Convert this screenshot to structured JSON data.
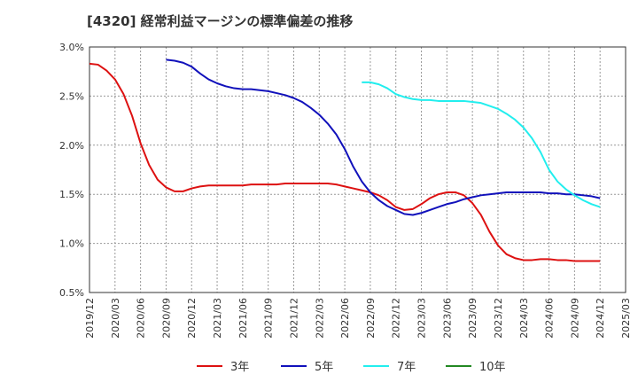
{
  "chart_data": {
    "type": "line",
    "title": "[4320]  経常利益マージンの標準偏差の推移",
    "xlabel": "",
    "ylabel": "",
    "y_tick_labels": [
      "0.5%",
      "1.0%",
      "1.5%",
      "2.0%",
      "2.5%",
      "3.0%"
    ],
    "ylim": [
      0.5,
      3.0
    ],
    "x_tick_labels": [
      "2019/12",
      "2020/03",
      "2020/06",
      "2020/09",
      "2020/12",
      "2021/03",
      "2021/06",
      "2021/09",
      "2021/12",
      "2022/03",
      "2022/06",
      "2022/09",
      "2022/12",
      "2023/03",
      "2023/06",
      "2023/09",
      "2023/12",
      "2024/03",
      "2024/06",
      "2024/09",
      "2024/12",
      "2025/03"
    ],
    "grid": true,
    "legend_position": "bottom",
    "series": [
      {
        "name": "3年",
        "color": "#dd1111",
        "points": [
          [
            "2019/12",
            2.83
          ],
          [
            "2020/01",
            2.82
          ],
          [
            "2020/02",
            2.76
          ],
          [
            "2020/03",
            2.67
          ],
          [
            "2020/04",
            2.52
          ],
          [
            "2020/05",
            2.3
          ],
          [
            "2020/06",
            2.02
          ],
          [
            "2020/07",
            1.8
          ],
          [
            "2020/08",
            1.65
          ],
          [
            "2020/09",
            1.57
          ],
          [
            "2020/10",
            1.53
          ],
          [
            "2020/11",
            1.53
          ],
          [
            "2020/12",
            1.56
          ],
          [
            "2021/01",
            1.58
          ],
          [
            "2021/02",
            1.59
          ],
          [
            "2021/03",
            1.59
          ],
          [
            "2021/04",
            1.59
          ],
          [
            "2021/05",
            1.59
          ],
          [
            "2021/06",
            1.59
          ],
          [
            "2021/07",
            1.6
          ],
          [
            "2021/08",
            1.6
          ],
          [
            "2021/09",
            1.6
          ],
          [
            "2021/10",
            1.6
          ],
          [
            "2021/11",
            1.61
          ],
          [
            "2021/12",
            1.61
          ],
          [
            "2022/01",
            1.61
          ],
          [
            "2022/02",
            1.61
          ],
          [
            "2022/03",
            1.61
          ],
          [
            "2022/04",
            1.61
          ],
          [
            "2022/05",
            1.6
          ],
          [
            "2022/06",
            1.58
          ],
          [
            "2022/07",
            1.56
          ],
          [
            "2022/08",
            1.54
          ],
          [
            "2022/09",
            1.52
          ],
          [
            "2022/10",
            1.49
          ],
          [
            "2022/11",
            1.44
          ],
          [
            "2022/12",
            1.37
          ],
          [
            "2023/01",
            1.34
          ],
          [
            "2023/02",
            1.35
          ],
          [
            "2023/03",
            1.4
          ],
          [
            "2023/04",
            1.46
          ],
          [
            "2023/05",
            1.5
          ],
          [
            "2023/06",
            1.52
          ],
          [
            "2023/07",
            1.52
          ],
          [
            "2023/08",
            1.49
          ],
          [
            "2023/09",
            1.41
          ],
          [
            "2023/10",
            1.29
          ],
          [
            "2023/11",
            1.12
          ],
          [
            "2023/12",
            0.98
          ],
          [
            "2024/01",
            0.89
          ],
          [
            "2024/02",
            0.85
          ],
          [
            "2024/03",
            0.83
          ],
          [
            "2024/04",
            0.83
          ],
          [
            "2024/05",
            0.84
          ],
          [
            "2024/06",
            0.84
          ],
          [
            "2024/07",
            0.83
          ],
          [
            "2024/08",
            0.83
          ],
          [
            "2024/09",
            0.82
          ],
          [
            "2024/10",
            0.82
          ],
          [
            "2024/11",
            0.82
          ],
          [
            "2024/12",
            0.82
          ]
        ]
      },
      {
        "name": "5年",
        "color": "#1111bb",
        "points": [
          [
            "2020/09",
            2.87
          ],
          [
            "2020/10",
            2.86
          ],
          [
            "2020/11",
            2.84
          ],
          [
            "2020/12",
            2.8
          ],
          [
            "2021/01",
            2.73
          ],
          [
            "2021/02",
            2.67
          ],
          [
            "2021/03",
            2.63
          ],
          [
            "2021/04",
            2.6
          ],
          [
            "2021/05",
            2.58
          ],
          [
            "2021/06",
            2.57
          ],
          [
            "2021/07",
            2.57
          ],
          [
            "2021/08",
            2.56
          ],
          [
            "2021/09",
            2.55
          ],
          [
            "2021/10",
            2.53
          ],
          [
            "2021/11",
            2.51
          ],
          [
            "2021/12",
            2.48
          ],
          [
            "2022/01",
            2.44
          ],
          [
            "2022/02",
            2.38
          ],
          [
            "2022/03",
            2.31
          ],
          [
            "2022/04",
            2.22
          ],
          [
            "2022/05",
            2.11
          ],
          [
            "2022/06",
            1.96
          ],
          [
            "2022/07",
            1.78
          ],
          [
            "2022/08",
            1.63
          ],
          [
            "2022/09",
            1.52
          ],
          [
            "2022/10",
            1.44
          ],
          [
            "2022/11",
            1.38
          ],
          [
            "2022/12",
            1.34
          ],
          [
            "2023/01",
            1.3
          ],
          [
            "2023/02",
            1.29
          ],
          [
            "2023/03",
            1.31
          ],
          [
            "2023/04",
            1.34
          ],
          [
            "2023/05",
            1.37
          ],
          [
            "2023/06",
            1.4
          ],
          [
            "2023/07",
            1.42
          ],
          [
            "2023/08",
            1.45
          ],
          [
            "2023/09",
            1.47
          ],
          [
            "2023/10",
            1.49
          ],
          [
            "2023/11",
            1.5
          ],
          [
            "2023/12",
            1.51
          ],
          [
            "2024/01",
            1.52
          ],
          [
            "2024/02",
            1.52
          ],
          [
            "2024/03",
            1.52
          ],
          [
            "2024/04",
            1.52
          ],
          [
            "2024/05",
            1.52
          ],
          [
            "2024/06",
            1.51
          ],
          [
            "2024/07",
            1.51
          ],
          [
            "2024/08",
            1.5
          ],
          [
            "2024/09",
            1.5
          ],
          [
            "2024/10",
            1.49
          ],
          [
            "2024/11",
            1.48
          ],
          [
            "2024/12",
            1.46
          ]
        ]
      },
      {
        "name": "7年",
        "color": "#22eeee",
        "points": [
          [
            "2022/08",
            2.64
          ],
          [
            "2022/09",
            2.64
          ],
          [
            "2022/10",
            2.62
          ],
          [
            "2022/11",
            2.58
          ],
          [
            "2022/12",
            2.52
          ],
          [
            "2023/01",
            2.49
          ],
          [
            "2023/02",
            2.47
          ],
          [
            "2023/03",
            2.46
          ],
          [
            "2023/04",
            2.46
          ],
          [
            "2023/05",
            2.45
          ],
          [
            "2023/06",
            2.45
          ],
          [
            "2023/07",
            2.45
          ],
          [
            "2023/08",
            2.45
          ],
          [
            "2023/09",
            2.44
          ],
          [
            "2023/10",
            2.43
          ],
          [
            "2023/11",
            2.4
          ],
          [
            "2023/12",
            2.37
          ],
          [
            "2024/01",
            2.32
          ],
          [
            "2024/02",
            2.26
          ],
          [
            "2024/03",
            2.18
          ],
          [
            "2024/04",
            2.07
          ],
          [
            "2024/05",
            1.93
          ],
          [
            "2024/06",
            1.75
          ],
          [
            "2024/07",
            1.63
          ],
          [
            "2024/08",
            1.55
          ],
          [
            "2024/09",
            1.49
          ],
          [
            "2024/10",
            1.44
          ],
          [
            "2024/11",
            1.4
          ],
          [
            "2024/12",
            1.37
          ]
        ]
      },
      {
        "name": "10年",
        "color": "#228822",
        "points": []
      }
    ]
  }
}
